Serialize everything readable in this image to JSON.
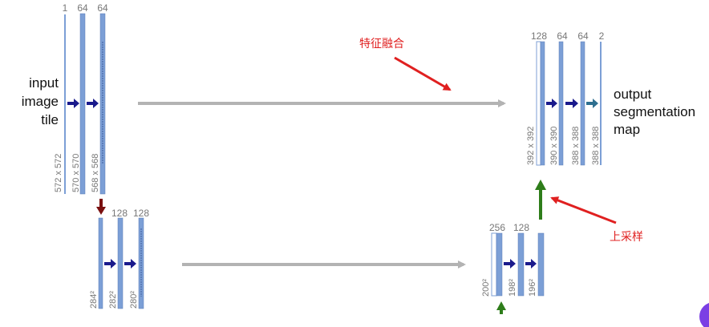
{
  "input_label": [
    "input",
    "image",
    "tile"
  ],
  "output_label": [
    "output",
    "segmentation",
    "map"
  ],
  "level1_encoder": {
    "channels": [
      "1",
      "64",
      "64"
    ],
    "sizes": [
      "572 x 572",
      "570 x 570",
      "568 x 568"
    ]
  },
  "level2_encoder": {
    "channels": [
      "128",
      "128"
    ],
    "sizes": [
      "284²",
      "282²",
      "280²"
    ]
  },
  "level2_decoder": {
    "channels": [
      "256",
      "128"
    ],
    "sizes": [
      "200²",
      "198²",
      "196²"
    ]
  },
  "level1_decoder": {
    "channels": [
      "128",
      "64",
      "64",
      "2"
    ],
    "sizes": [
      "392 x 392",
      "390 x 390",
      "388 x 388",
      "388 x 388"
    ]
  },
  "annotations": {
    "fusion": "特征融合",
    "upsample": "上采样"
  },
  "colors": {
    "feature_map": "#7c9fd6",
    "conv_arrow": "#1a1a8c",
    "skip_arrow": "#b3b3b3",
    "pool_arrow": "#7a1010",
    "upconv_arrow": "#2e7d1a",
    "final_arrow": "#2e6f8f",
    "annotation": "#e02020"
  }
}
